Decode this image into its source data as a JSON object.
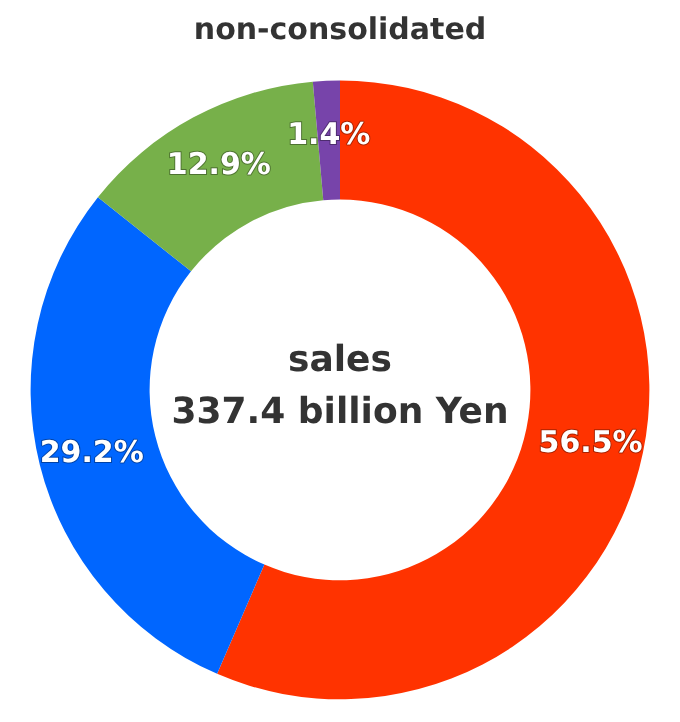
{
  "chart_data": {
    "type": "donut",
    "title": "non-consolidated",
    "categories": [
      null,
      null,
      null,
      null
    ],
    "values": [
      56.5,
      29.2,
      12.9,
      1.4
    ],
    "colors": [
      "#ff3300",
      "#0066ff",
      "#77b04a",
      "#7744aa"
    ],
    "value_labels": [
      "56.5%",
      "29.2%",
      "12.9%",
      "1.4%"
    ],
    "annotations": [
      "sales",
      "337.4 billion Yen"
    ]
  }
}
